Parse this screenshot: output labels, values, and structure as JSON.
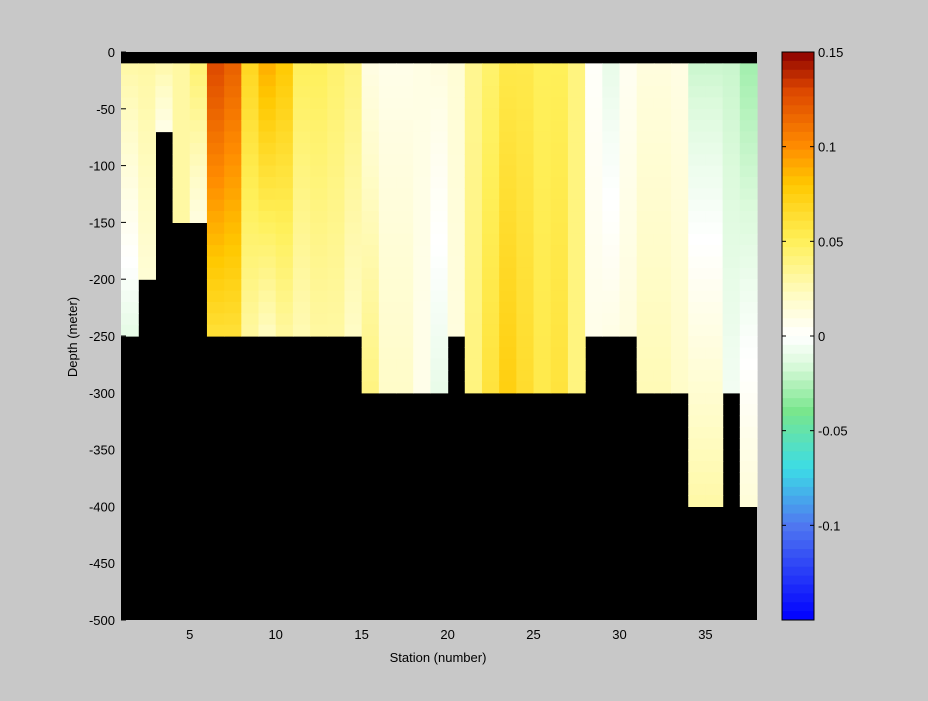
{
  "chart_data": {
    "type": "heatmap",
    "xlabel": "Station (number)",
    "ylabel": "Depth (meter)",
    "xlim": [
      1,
      38
    ],
    "ylim": [
      -500,
      0
    ],
    "xticks": [
      5,
      10,
      15,
      20,
      25,
      30,
      35
    ],
    "yticks": [
      0,
      -50,
      -100,
      -150,
      -200,
      -250,
      -300,
      -350,
      -400,
      -450,
      -500
    ],
    "colorbar": {
      "range": [
        -0.15,
        0.15
      ],
      "ticks": [
        0.15,
        0.1,
        0.05,
        0,
        -0.05,
        -0.1
      ],
      "tick_labels": [
        "0.15",
        "0.1",
        "0.05",
        "0",
        "-0.05",
        "-0.1"
      ],
      "colormap": "blue-cyan-green-white-yellow-orange-red"
    },
    "mask_color": "#000000",
    "depth_levels": [
      0,
      -10,
      -20,
      -30,
      -40,
      -50,
      -60,
      -70,
      -80,
      -90,
      -100,
      -110,
      -120,
      -130,
      -140,
      -150,
      -160,
      -170,
      -180,
      -190,
      -200,
      -210,
      -220,
      -230,
      -240,
      -250,
      -260,
      -270,
      -280,
      -290,
      -300,
      -310,
      -320,
      -330,
      -340,
      -350,
      -360,
      -370,
      -380,
      -390,
      -400
    ],
    "stations": [
      1,
      2,
      3,
      4,
      5,
      6,
      7,
      8,
      9,
      10,
      11,
      12,
      13,
      14,
      15,
      16,
      17,
      18,
      19,
      20,
      21,
      22,
      23,
      24,
      25,
      26,
      27,
      28,
      29,
      30,
      31,
      32,
      33,
      34,
      35,
      36,
      37
    ],
    "station_profiles": [
      {
        "station": 1,
        "bottom_depth": -250,
        "surface": 0.03,
        "deep": -0.012
      },
      {
        "station": 2,
        "bottom_depth": -200,
        "surface": 0.03,
        "deep": 0.015
      },
      {
        "station": 3,
        "bottom_depth": -75,
        "surface": 0.03,
        "deep": 0.005
      },
      {
        "station": 4,
        "bottom_depth": -150,
        "surface": 0.03,
        "deep": 0.03
      },
      {
        "station": 5,
        "bottom_depth": -150,
        "surface": 0.045,
        "deep": 0.01
      },
      {
        "station": 6,
        "bottom_depth": -250,
        "surface": 0.13,
        "deep": 0.06
      },
      {
        "station": 7,
        "bottom_depth": -250,
        "surface": 0.12,
        "deep": 0.06
      },
      {
        "station": 8,
        "bottom_depth": -250,
        "surface": 0.07,
        "deep": 0.03
      },
      {
        "station": 9,
        "bottom_depth": -250,
        "surface": 0.09,
        "deep": 0.02
      },
      {
        "station": 10,
        "bottom_depth": -250,
        "surface": 0.08,
        "deep": 0.03
      },
      {
        "station": 11,
        "bottom_depth": -250,
        "surface": 0.05,
        "deep": 0.025
      },
      {
        "station": 12,
        "bottom_depth": -250,
        "surface": 0.05,
        "deep": 0.03
      },
      {
        "station": 13,
        "bottom_depth": -250,
        "surface": 0.045,
        "deep": 0.03
      },
      {
        "station": 14,
        "bottom_depth": -250,
        "surface": 0.04,
        "deep": 0.02
      },
      {
        "station": 15,
        "bottom_depth": -300,
        "surface": 0.01,
        "deep": 0.04
      },
      {
        "station": 16,
        "bottom_depth": -300,
        "surface": 0.008,
        "deep": 0.02
      },
      {
        "station": 17,
        "bottom_depth": -300,
        "surface": 0.008,
        "deep": 0.02
      },
      {
        "station": 18,
        "bottom_depth": -300,
        "surface": 0.01,
        "deep": 0.008
      },
      {
        "station": 19,
        "bottom_depth": -300,
        "surface": 0.012,
        "deep": -0.01
      },
      {
        "station": 20,
        "bottom_depth": -250,
        "surface": 0.015,
        "deep": 0.012
      },
      {
        "station": 21,
        "bottom_depth": -300,
        "surface": 0.035,
        "deep": 0.04
      },
      {
        "station": 22,
        "bottom_depth": -300,
        "surface": 0.045,
        "deep": 0.06
      },
      {
        "station": 23,
        "bottom_depth": -300,
        "surface": 0.055,
        "deep": 0.075
      },
      {
        "station": 24,
        "bottom_depth": -300,
        "surface": 0.055,
        "deep": 0.065
      },
      {
        "station": 25,
        "bottom_depth": -300,
        "surface": 0.05,
        "deep": 0.055
      },
      {
        "station": 26,
        "bottom_depth": -300,
        "surface": 0.05,
        "deep": 0.06
      },
      {
        "station": 27,
        "bottom_depth": -300,
        "surface": 0.04,
        "deep": 0.04
      },
      {
        "station": 28,
        "bottom_depth": -250,
        "surface": 0.002,
        "deep": 0.008
      },
      {
        "station": 29,
        "bottom_depth": -250,
        "surface": -0.01,
        "deep": 0.01
      },
      {
        "station": 30,
        "bottom_depth": -250,
        "surface": 0.005,
        "deep": 0.012
      },
      {
        "station": 31,
        "bottom_depth": -300,
        "surface": 0.012,
        "deep": 0.025
      },
      {
        "station": 32,
        "bottom_depth": -300,
        "surface": 0.012,
        "deep": 0.025
      },
      {
        "station": 33,
        "bottom_depth": -300,
        "surface": 0.01,
        "deep": 0.02
      },
      {
        "station": 34,
        "bottom_depth": -400,
        "surface": -0.02,
        "deep": 0.03
      },
      {
        "station": 35,
        "bottom_depth": -400,
        "surface": -0.02,
        "deep": 0.03
      },
      {
        "station": 36,
        "bottom_depth": -300,
        "surface": -0.02,
        "deep": -0.005
      },
      {
        "station": 37,
        "bottom_depth": -400,
        "surface": -0.03,
        "deep": 0.015
      }
    ]
  }
}
